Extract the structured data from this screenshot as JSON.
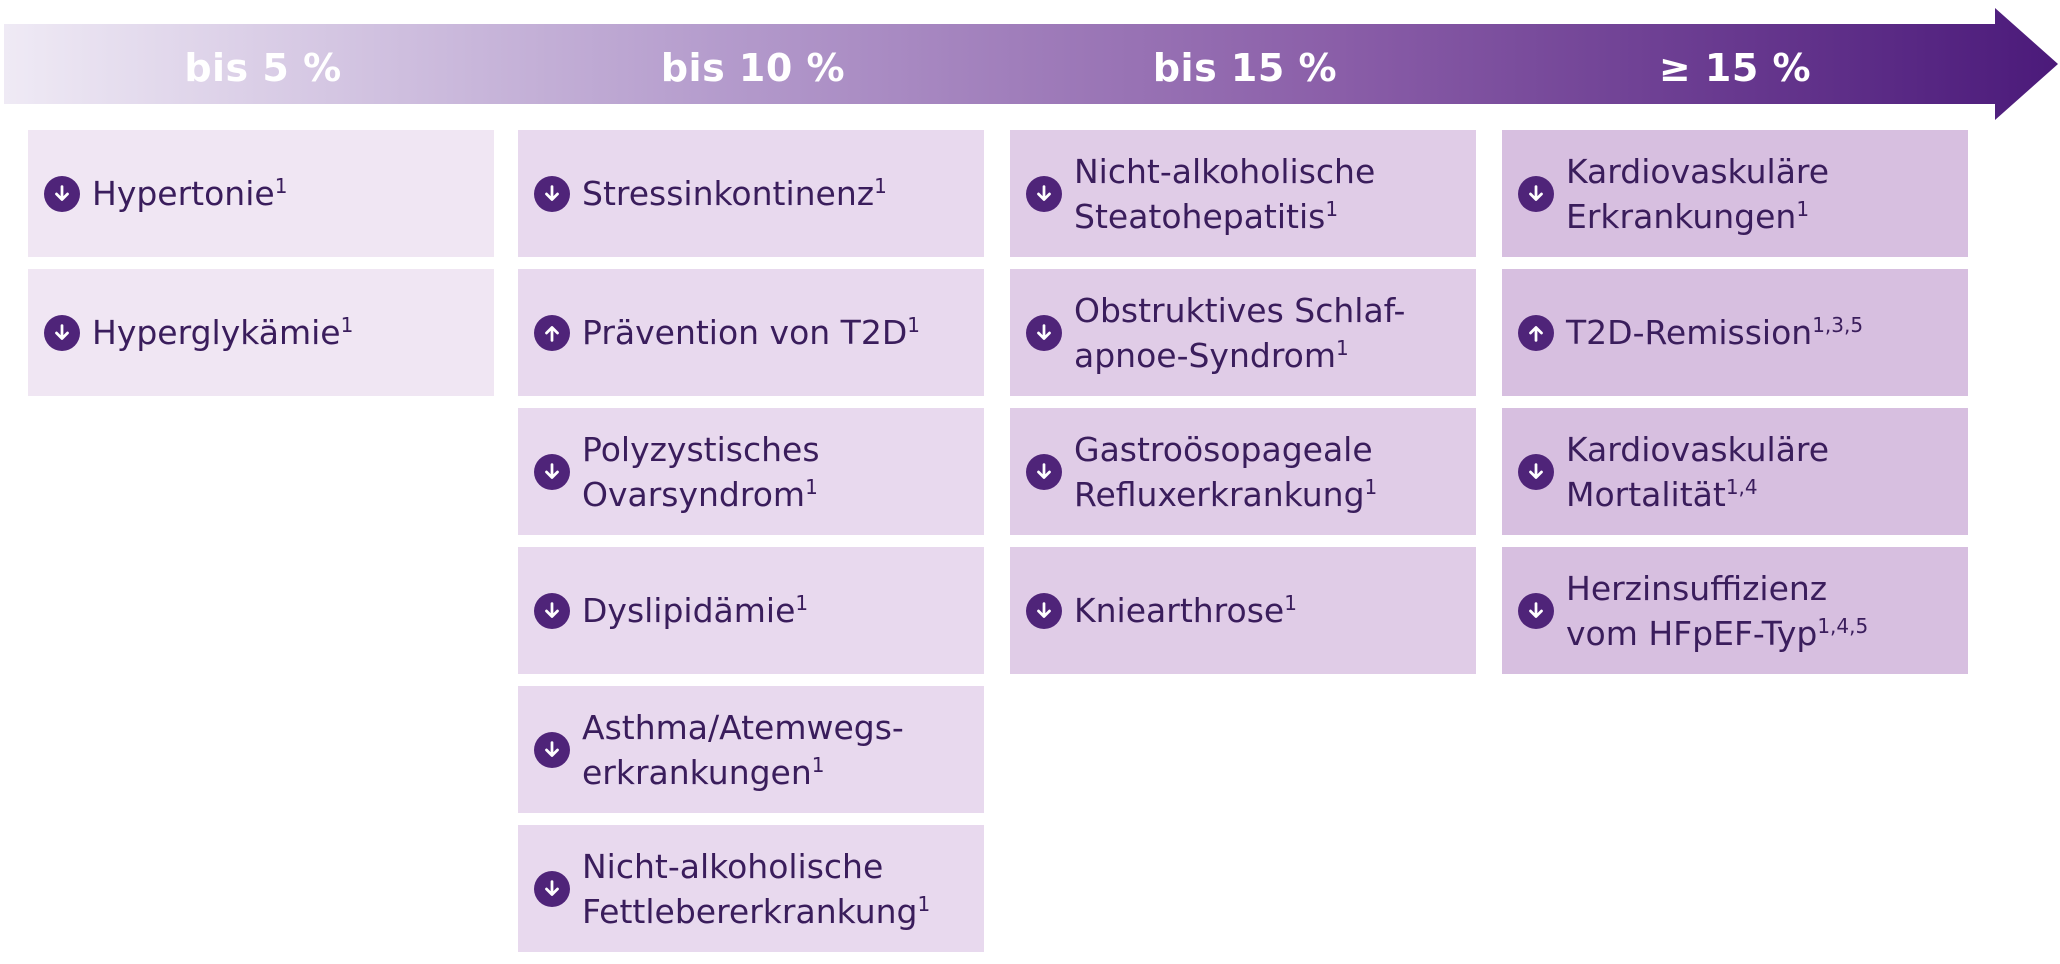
{
  "colors": {
    "arrow_start": "#efeaf5",
    "arrow_end": "#4b1a7a",
    "icon_bg": "#4f2479",
    "text": "#3a1d5c",
    "card_col1": "#f0e6f3",
    "card_col2": "#e8d9ee",
    "card_col3": "#e0cce7",
    "card_col4": "#d7bfe0"
  },
  "headers": [
    "bis 5 %",
    "bis 10 %",
    "bis 15 %",
    "≥ 15 %"
  ],
  "columns": [
    {
      "items": [
        {
          "direction": "down",
          "icon": "arrow-down-circle-icon",
          "text": "Hypertonie",
          "sup": "1"
        },
        {
          "direction": "down",
          "icon": "arrow-down-circle-icon",
          "text": "Hyperglykämie",
          "sup": "1"
        }
      ]
    },
    {
      "items": [
        {
          "direction": "down",
          "icon": "arrow-down-circle-icon",
          "text": "Stressinkontinenz",
          "sup": "1"
        },
        {
          "direction": "up",
          "icon": "arrow-up-circle-icon",
          "text": "Prävention von T2D",
          "sup": "1"
        },
        {
          "direction": "down",
          "icon": "arrow-down-circle-icon",
          "text": "Polyzystisches\nOvarsyndrom",
          "sup": "1"
        },
        {
          "direction": "down",
          "icon": "arrow-down-circle-icon",
          "text": "Dyslipidämie",
          "sup": "1"
        },
        {
          "direction": "down",
          "icon": "arrow-down-circle-icon",
          "text": "Asthma/Atemwegs-\nerkrankungen",
          "sup": "1"
        },
        {
          "direction": "down",
          "icon": "arrow-down-circle-icon",
          "text": "Nicht-alkoholische\nFettlebererkrankung",
          "sup": "1"
        }
      ]
    },
    {
      "items": [
        {
          "direction": "down",
          "icon": "arrow-down-circle-icon",
          "text": "Nicht-alkoholische\nSteatohepatitis",
          "sup": "1"
        },
        {
          "direction": "down",
          "icon": "arrow-down-circle-icon",
          "text": "Obstruktives Schlaf-\napnoe-Syndrom",
          "sup": "1"
        },
        {
          "direction": "down",
          "icon": "arrow-down-circle-icon",
          "text": "Gastroösopageale\nRefluxerkrankung",
          "sup": "1"
        },
        {
          "direction": "down",
          "icon": "arrow-down-circle-icon",
          "text": "Kniearthrose",
          "sup": "1"
        }
      ]
    },
    {
      "items": [
        {
          "direction": "down",
          "icon": "arrow-down-circle-icon",
          "text": "Kardiovaskuläre\nErkrankungen",
          "sup": "1"
        },
        {
          "direction": "up",
          "icon": "arrow-up-circle-icon",
          "text": "T2D-Remission",
          "sup": "1,3,5"
        },
        {
          "direction": "down",
          "icon": "arrow-down-circle-icon",
          "text": "Kardiovaskuläre\nMortalität",
          "sup": "1,4"
        },
        {
          "direction": "down",
          "icon": "arrow-down-circle-icon",
          "text": "Herzinsuffizienz\nvom HFpEF-Typ",
          "sup": "1,4,5"
        }
      ]
    }
  ]
}
